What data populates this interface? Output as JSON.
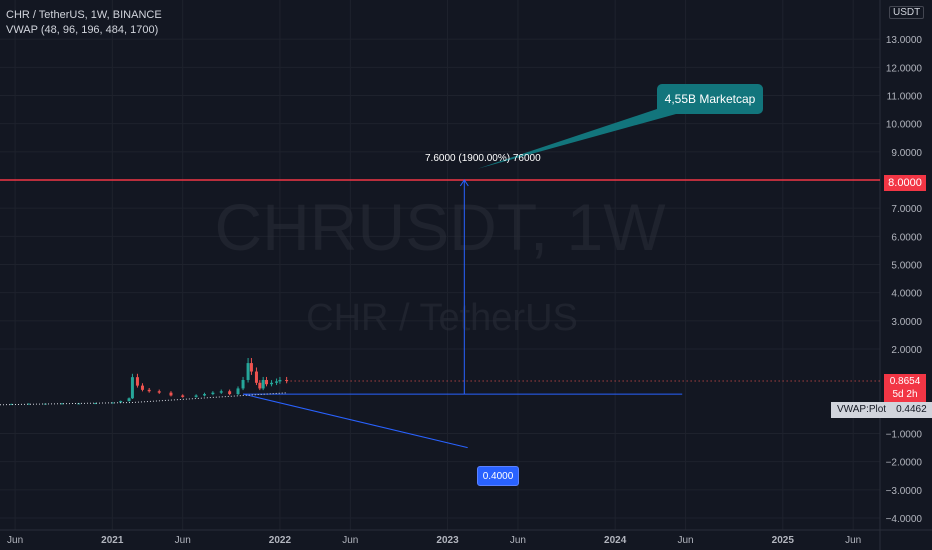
{
  "legend": {
    "title": "CHR / TetherUS, 1W, BINANCE",
    "indicator": "VWAP (48, 96, 196, 484, 1700)"
  },
  "watermark": {
    "symbol": "CHRUSDT, 1W",
    "name": "CHR / TetherUS"
  },
  "currency_button": "USDT",
  "annotations": {
    "callout": "4,55B Marketcap",
    "measure": "7.6000 (1900.00%) 76000",
    "low_label": "0.4000",
    "target_label": "8.0000"
  },
  "price_label": {
    "value": "0.8654",
    "countdown": "5d 2h"
  },
  "vwap_label": {
    "name": "VWAP:Plot",
    "value": "0.4462"
  },
  "colors": {
    "background": "#131722",
    "grid": "#1e222d",
    "up": "#26a69a",
    "down": "#ef5350",
    "target_line": "#f23645",
    "drawing": "#2962ff",
    "callout": "#12757c"
  },
  "chart_data": {
    "type": "line",
    "title": "CHR / TetherUS, 1W, BINANCE",
    "ylim": [
      -4,
      14
    ],
    "y_ticks": [
      13,
      12,
      11,
      10,
      9,
      8,
      7,
      6,
      5,
      4,
      3,
      2,
      -1,
      -2,
      -3,
      -4
    ],
    "y_tick_labels": [
      "13.0000",
      "12.0000",
      "11.0000",
      "10.0000",
      "9.0000",
      "8.0000",
      "7.0000",
      "6.0000",
      "5.0000",
      "4.0000",
      "3.0000",
      "2.0000",
      "−1.0000",
      "−2.0000",
      "−3.0000",
      "−4.0000"
    ],
    "x_ticks": [
      "Jun",
      "2021",
      "Jun",
      "2022",
      "Jun",
      "2023",
      "Jun",
      "2024",
      "Jun",
      "2025",
      "Jun"
    ],
    "x_range": [
      2020.33,
      2025.58
    ],
    "x_tick_values": [
      2020.42,
      2021.0,
      2021.42,
      2022.0,
      2022.42,
      2023.0,
      2023.42,
      2024.0,
      2024.42,
      2025.0,
      2025.42
    ],
    "series": [
      {
        "x": [
          2020.33,
          2020.4,
          2020.5,
          2020.6,
          2020.7,
          2020.8,
          2020.9,
          2021.0,
          2021.05,
          2021.1,
          2021.12,
          2021.15,
          2021.18,
          2021.22,
          2021.28,
          2021.35,
          2021.42,
          2021.5,
          2021.55,
          2021.6,
          2021.65,
          2021.7,
          2021.75,
          2021.78,
          2021.81,
          2021.83,
          2021.86,
          2021.88,
          2021.9,
          2021.92,
          2021.95,
          2021.98,
          2022.0,
          2022.04
        ],
        "values": [
          0.05,
          0.05,
          0.06,
          0.06,
          0.07,
          0.07,
          0.08,
          0.1,
          0.15,
          0.25,
          1.0,
          0.7,
          0.55,
          0.5,
          0.45,
          0.35,
          0.3,
          0.35,
          0.4,
          0.45,
          0.5,
          0.4,
          0.6,
          0.9,
          1.5,
          1.2,
          0.8,
          0.6,
          0.9,
          0.75,
          0.8,
          0.85,
          0.9,
          0.87
        ]
      }
    ],
    "levels": {
      "target": 8.0,
      "base": 0.4,
      "current": 0.8654,
      "vwap": 0.4462,
      "measure_x": 2023.1,
      "base_line_x": [
        2021.78,
        2024.4
      ],
      "trend_line": {
        "x": [
          2021.78,
          2023.12
        ],
        "y": [
          0.4,
          -1.5
        ]
      },
      "callout_pointer": {
        "x": 2023.18,
        "y": 8.4
      }
    }
  }
}
